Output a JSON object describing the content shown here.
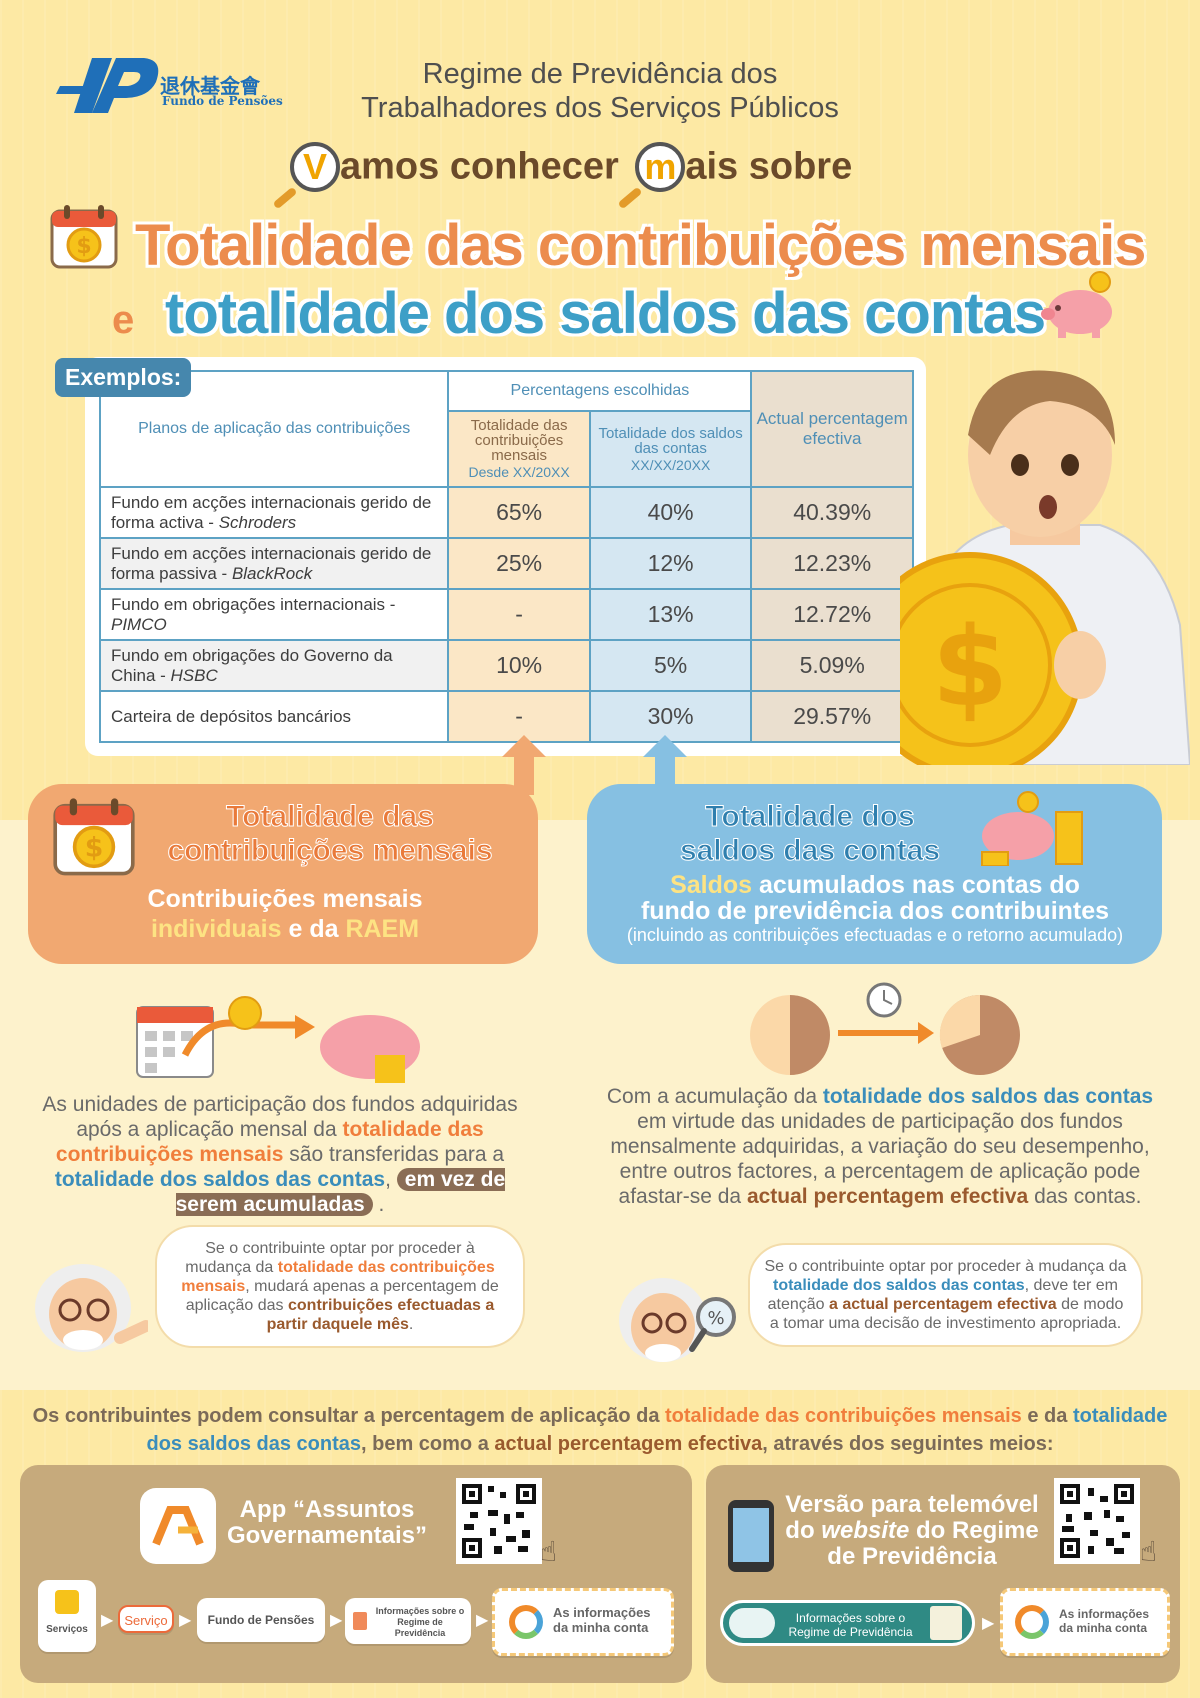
{
  "header": {
    "logo_cn": "退休基金會",
    "logo_pt": "Fundo de Pensões",
    "line1": "Regime de Previdência dos",
    "line2": "Trabalhadores dos Serviços Públicos",
    "subtitle_letter1": "V",
    "subtitle_part1": "amos conhecer",
    "subtitle_letter2": "m",
    "subtitle_part2": "ais sobre",
    "title1": "Totalidade das contribuições mensais",
    "connector": "e",
    "title2": "totalidade dos saldos das contas"
  },
  "table": {
    "badge": "Exemplos:",
    "col_plans": "Planos de aplicação das contribuições",
    "col_group": "Percentagens escolhidas",
    "col_a": "Totalidade das contribuições mensais",
    "col_a_date": "Desde XX/20XX",
    "col_b": "Totalidade dos saldos das contas",
    "col_b_date": "XX/XX/20XX",
    "col_c": "Actual percentagem efectiva",
    "rows": [
      {
        "label": "Fundo em acções internacionais gerido de forma activa - ",
        "label_it": "Schroders",
        "a": "65%",
        "b": "40%",
        "c": "40.39%"
      },
      {
        "label": "Fundo em acções internacionais gerido de forma passiva - ",
        "label_it": "BlackRock",
        "a": "25%",
        "b": "12%",
        "c": "12.23%"
      },
      {
        "label": "Fundo em obrigações internacionais - ",
        "label_it": "PIMCO",
        "a": "-",
        "b": "13%",
        "c": "12.72%"
      },
      {
        "label": "Fundo em obrigações do Governo da China - ",
        "label_it": "HSBC",
        "a": "10%",
        "b": "5%",
        "c": "5.09%"
      },
      {
        "label": "Carteira de depósitos bancários",
        "label_it": "",
        "a": "-",
        "b": "30%",
        "c": "29.57%"
      }
    ]
  },
  "left": {
    "title1": "Totalidade das",
    "title2": "contribuições mensais",
    "sub1": "Contribuições mensais",
    "sub2a": "individuais",
    "sub2b": " e da ",
    "sub2c": "RAEM",
    "p1": "As unidades de participação dos fundos adquiridas após a aplicação mensal da ",
    "p2": "totalidade das contribuições mensais",
    "p3": " são transferidas para a ",
    "p4": "totalidade dos saldos das contas",
    "p5": ", ",
    "p6": "em vez de serem acumuladas",
    "p7": " .",
    "s1": "Se o contribuinte optar por proceder à mudança da ",
    "s2": "totalidade das contribuições mensais",
    "s3": ", mudará apenas a percentagem de aplicação das ",
    "s4": "contribuições efectuadas a partir daquele mês",
    "s5": "."
  },
  "right": {
    "title1": "Totalidade dos",
    "title2": "saldos das contas",
    "sub1a": "Saldos",
    "sub1b": " acumulados nas contas do",
    "sub2": "fundo de previdência dos contribuintes",
    "sub3": "(incluindo as contribuições efectuadas e o retorno acumulado)",
    "p1": "Com a acumulação da ",
    "p2": "totalidade dos saldos das contas",
    "p3": " em virtude das unidades de participação dos fundos mensalmente adquiridas, a variação do seu desempenho, entre outros factores, a percentagem de aplicação pode afastar-se da ",
    "p4": "actual percentagem efectiva",
    "p5": " das contas.",
    "s1": "Se o contribuinte optar por proceder à mudança da ",
    "s2": "totalidade dos saldos das contas",
    "s3": ", deve ter em atenção ",
    "s4": "a actual percentagem efectiva",
    "s5": " de modo a tomar uma decisão de investimento apropriada."
  },
  "footer": {
    "f1": "Os contribuintes podem consultar a percentagem de aplicação da ",
    "f2": "totalidade das contribuições mensais",
    "f3": " e da ",
    "f4": "totalidade dos saldos das contas",
    "f5": ", bem como a ",
    "f6": "actual percentagem efectiva",
    "f7": ", através dos seguintes meios:",
    "app_title": "App “Assuntos Governamentais”",
    "web_title_a": "Versão para telemóvel do ",
    "web_title_b": "website",
    "web_title_c": " do Regime de Previdência",
    "steps_app": [
      "Serviços",
      "Serviço",
      "Fundo de Pensões",
      "Informações sobre o Regime de Previdência",
      "As informações da minha conta"
    ],
    "steps_web": [
      "Informações sobre o Regime de Previdência",
      "As informações da minha conta"
    ]
  }
}
